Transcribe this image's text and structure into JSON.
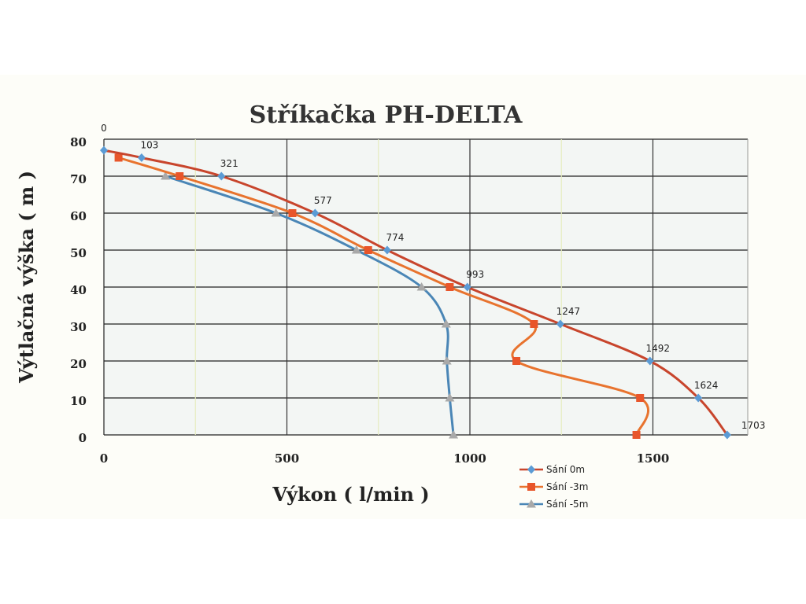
{
  "chart_data": {
    "type": "line",
    "title": "Stříkačka PH-DELTA",
    "xlabel": "Výkon ( l/min )",
    "ylabel": "Výtlačná výška ( m )",
    "xlim": [
      0,
      1700
    ],
    "ylim": [
      0,
      80
    ],
    "x_ticks": [
      0,
      500,
      1000,
      1500
    ],
    "y_ticks": [
      0,
      10,
      20,
      30,
      40,
      50,
      60,
      70,
      80
    ],
    "x_minor_gridlines": [
      250,
      750,
      1250
    ],
    "grid": true,
    "legend_position": "bottom-right",
    "series": [
      {
        "name": "Sání 0m",
        "color": "#c8452c",
        "marker_color": "#5b9bd5",
        "marker": "diamond",
        "points": [
          {
            "x": 0,
            "y": 77,
            "label": "0"
          },
          {
            "x": 103,
            "y": 75,
            "label": "103"
          },
          {
            "x": 321,
            "y": 70,
            "label": "321"
          },
          {
            "x": 577,
            "y": 60,
            "label": "577"
          },
          {
            "x": 774,
            "y": 50,
            "label": "774"
          },
          {
            "x": 993,
            "y": 40,
            "label": "993"
          },
          {
            "x": 1247,
            "y": 30,
            "label": "1247"
          },
          {
            "x": 1492,
            "y": 20,
            "label": "1492"
          },
          {
            "x": 1624,
            "y": 10,
            "label": "1624"
          },
          {
            "x": 1703,
            "y": 0,
            "label": "1703"
          }
        ]
      },
      {
        "name": "Sání -3m",
        "color": "#e8732e",
        "marker_color": "#e8552a",
        "marker": "square",
        "points": [
          {
            "x": 40,
            "y": 75
          },
          {
            "x": 207,
            "y": 70
          },
          {
            "x": 515,
            "y": 60
          },
          {
            "x": 722,
            "y": 50
          },
          {
            "x": 945,
            "y": 40
          },
          {
            "x": 1175,
            "y": 30
          },
          {
            "x": 1127,
            "y": 20
          },
          {
            "x": 1465,
            "y": 10
          },
          {
            "x": 1455,
            "y": 0
          }
        ]
      },
      {
        "name": "Sání -5m",
        "color": "#4a86b6",
        "marker_color": "#a9a9a9",
        "marker": "triangle",
        "points": [
          {
            "x": 168,
            "y": 70
          },
          {
            "x": 470,
            "y": 60
          },
          {
            "x": 690,
            "y": 50
          },
          {
            "x": 868,
            "y": 40
          },
          {
            "x": 935,
            "y": 30
          },
          {
            "x": 937,
            "y": 20
          },
          {
            "x": 945,
            "y": 10
          },
          {
            "x": 955,
            "y": 0
          }
        ]
      }
    ]
  }
}
